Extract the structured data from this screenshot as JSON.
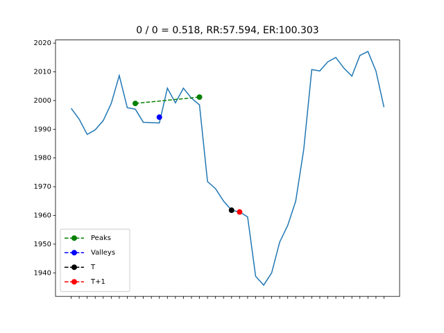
{
  "chart_data": {
    "type": "line",
    "title": "0 / 0 = 0.518, RR:57.594, ER:100.303",
    "categories": [
      null,
      null,
      null,
      null,
      null,
      null,
      null,
      null,
      null,
      null,
      null,
      null,
      null,
      null,
      null,
      null,
      null,
      null,
      null,
      null,
      null,
      null,
      null,
      null,
      null,
      null,
      null,
      null,
      null,
      null,
      null,
      null,
      null,
      null,
      null,
      null,
      null,
      null,
      null,
      null
    ],
    "ylim": [
      1931.8,
      2021.1
    ],
    "yticks": [
      1940,
      1950,
      1960,
      1970,
      1980,
      1990,
      2000,
      2010,
      2020
    ],
    "legend": "lower left",
    "series": [
      {
        "color": "#1f77b4",
        "style": "solid",
        "marker": false,
        "values": [
          1997.3,
          1993.5,
          1988.2,
          1989.8,
          1993,
          1999,
          2008.7,
          1997.5,
          1997,
          1992.4,
          1992.3,
          1992.2,
          2004.3,
          1999.2,
          2004.3,
          2000.8,
          1998.5,
          1971.8,
          1969.3,
          1965,
          1961.8,
          1961.2,
          1959.5,
          1938.8,
          1935.7,
          1940,
          1950.7,
          1956.5,
          1965,
          1983,
          2010.8,
          2010.3,
          2013.5,
          2015,
          2011.3,
          2008.5,
          2015.7,
          2017.1,
          2010.3,
          1997.7
        ]
      },
      {
        "name": "Peaks",
        "color": "green",
        "style": "dashed",
        "marker": true,
        "values": [
          null,
          null,
          null,
          null,
          null,
          null,
          null,
          null,
          1999,
          null,
          null,
          null,
          null,
          null,
          null,
          null,
          2001.2,
          null,
          null,
          null,
          null,
          null,
          null,
          null,
          null,
          null,
          null,
          null,
          null,
          null,
          null,
          null,
          null,
          null,
          null,
          null,
          null,
          null,
          null,
          null
        ]
      },
      {
        "name": "Valleys",
        "color": "blue",
        "style": "dashed",
        "marker": true,
        "values": [
          null,
          null,
          null,
          null,
          null,
          null,
          null,
          null,
          null,
          null,
          null,
          1994.2,
          null,
          null,
          null,
          null,
          null,
          null,
          null,
          null,
          null,
          null,
          null,
          null,
          null,
          null,
          null,
          null,
          null,
          null,
          null,
          null,
          null,
          null,
          null,
          null,
          null,
          null,
          null,
          null
        ]
      },
      {
        "name": "T",
        "color": "black",
        "style": "dashed",
        "marker": true,
        "values": [
          null,
          null,
          null,
          null,
          null,
          null,
          null,
          null,
          null,
          null,
          null,
          null,
          null,
          null,
          null,
          null,
          null,
          null,
          null,
          null,
          1961.8,
          null,
          null,
          null,
          null,
          null,
          null,
          null,
          null,
          null,
          null,
          null,
          null,
          null,
          null,
          null,
          null,
          null,
          null,
          null
        ]
      },
      {
        "name": "T+1",
        "color": "red",
        "style": "dashed",
        "marker": true,
        "values": [
          null,
          null,
          null,
          null,
          null,
          null,
          null,
          null,
          null,
          null,
          null,
          null,
          null,
          null,
          null,
          null,
          null,
          null,
          null,
          null,
          null,
          1961.2,
          null,
          null,
          null,
          null,
          null,
          null,
          null,
          null,
          null,
          null,
          null,
          null,
          null,
          null,
          null,
          null,
          null,
          null
        ]
      }
    ]
  }
}
